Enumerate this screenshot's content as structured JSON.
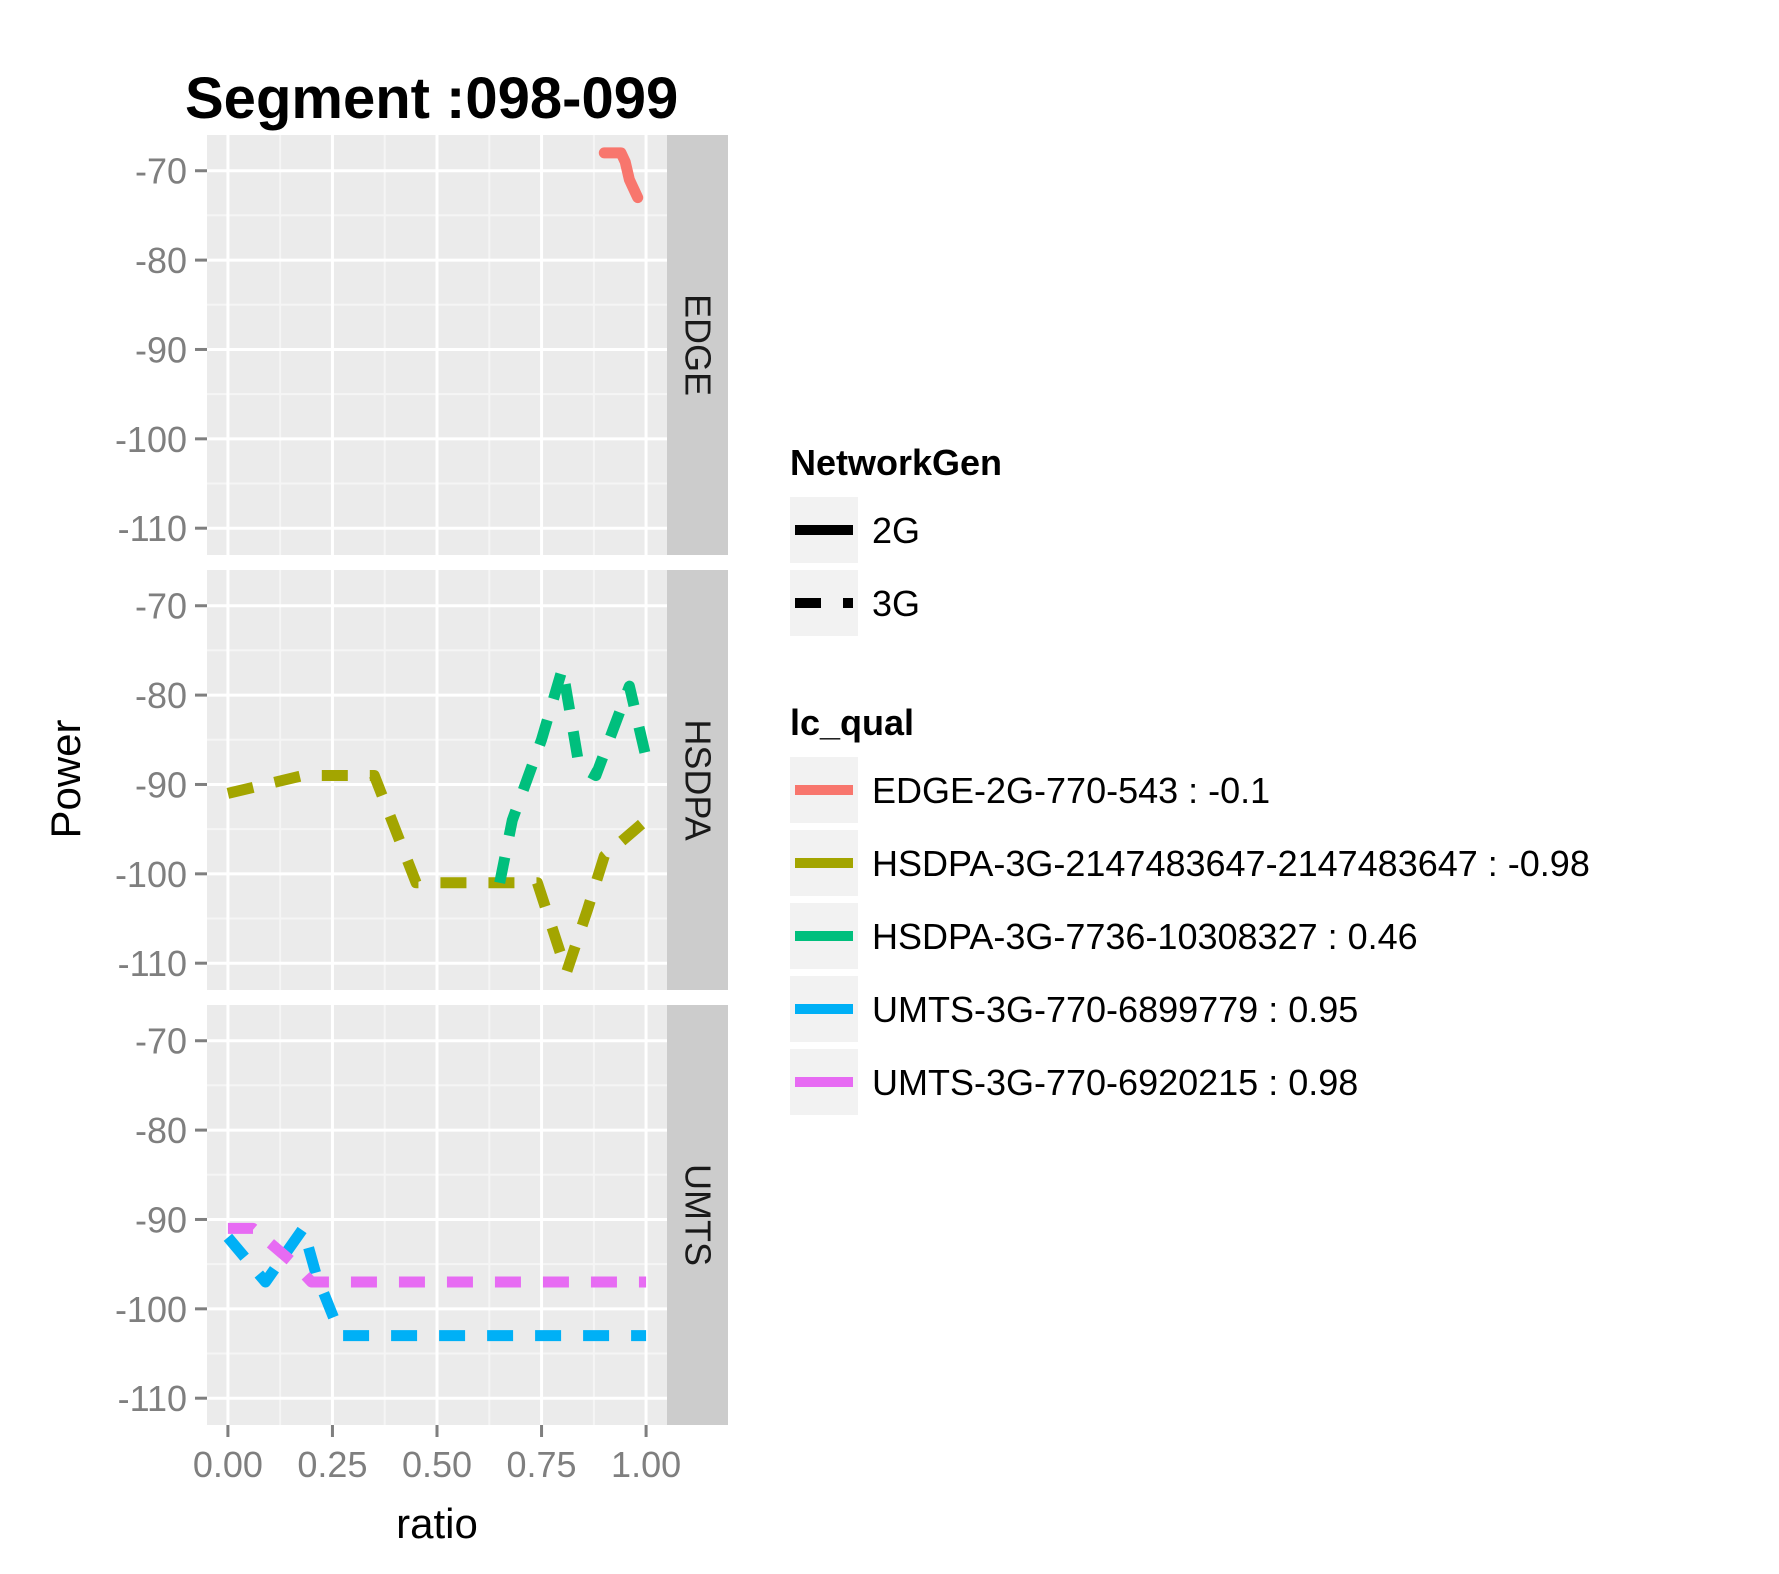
{
  "chart_data": {
    "type": "line",
    "title": "Segment :098-099",
    "xlabel": "ratio",
    "ylabel": "Power",
    "xlim": [
      -0.05,
      1.05
    ],
    "ylim": [
      -113,
      -66
    ],
    "x_ticks": [
      0,
      0.25,
      0.5,
      0.75,
      1
    ],
    "x_tick_labels": [
      "0.00",
      "0.25",
      "0.50",
      "0.75",
      "1.00"
    ],
    "y_ticks": [
      -70,
      -80,
      -90,
      -100,
      -110
    ],
    "y_tick_labels": [
      "-70",
      "-80",
      "-90",
      "-100",
      "-110"
    ],
    "grid": true,
    "facets": [
      {
        "label": "EDGE",
        "series": [
          {
            "name": "EDGE-2G-770-543 : -0.1",
            "color": "#F8766D",
            "linetype": "solid",
            "x": [
              0.9,
              0.94,
              0.95,
              0.96,
              0.97,
              0.98
            ],
            "y": [
              -68,
              -68,
              -69,
              -71,
              -72,
              -73
            ]
          }
        ]
      },
      {
        "label": "HSDPA",
        "series": [
          {
            "name": "HSDPA-3G-2147483647-2147483647 : -0.98",
            "color": "#A3A500",
            "linetype": "dashed",
            "x": [
              0.0,
              0.18,
              0.25,
              0.35,
              0.45,
              0.55,
              0.65,
              0.74,
              0.81,
              0.86,
              0.9,
              1.0
            ],
            "y": [
              -91,
              -89,
              -89,
              -89,
              -101,
              -101,
              -101,
              -101,
              -111,
              -104,
              -98,
              -94
            ]
          },
          {
            "name": "HSDPA-3G-7736-10308327 : 0.46",
            "color": "#00BF7D",
            "linetype": "dashed",
            "x": [
              0.65,
              0.68,
              0.75,
              0.8,
              0.84,
              0.88,
              0.92,
              0.96,
              1.0
            ],
            "y": [
              -101,
              -94,
              -85,
              -77,
              -88,
              -89,
              -84,
              -79,
              -87
            ]
          }
        ]
      },
      {
        "label": "UMTS",
        "series": [
          {
            "name": "UMTS-3G-770-6899779 : 0.95",
            "color": "#00B0F6",
            "linetype": "dashed",
            "x": [
              0.0,
              0.09,
              0.18,
              0.21,
              0.27,
              0.4,
              1.0
            ],
            "y": [
              -92,
              -97,
              -91,
              -96,
              -103,
              -103,
              -103
            ]
          },
          {
            "name": "UMTS-3G-770-6920215 : 0.98",
            "color": "#E76BF3",
            "linetype": "dashed",
            "x": [
              0.0,
              0.06,
              0.16,
              0.2,
              1.0
            ],
            "y": [
              -91,
              -91,
              -95,
              -97,
              -97
            ]
          }
        ]
      }
    ],
    "legends": [
      {
        "title": "NetworkGen",
        "entries": [
          {
            "label": "2G",
            "linetype": "solid",
            "color": "#000000"
          },
          {
            "label": "3G",
            "linetype": "dashed",
            "color": "#000000"
          }
        ]
      },
      {
        "title": "lc_qual",
        "entries": [
          {
            "label": "EDGE-2G-770-543 : -0.1",
            "color": "#F8766D"
          },
          {
            "label": "HSDPA-3G-2147483647-2147483647 : -0.98",
            "color": "#A3A500"
          },
          {
            "label": "HSDPA-3G-7736-10308327 : 0.46",
            "color": "#00BF7D"
          },
          {
            "label": "UMTS-3G-770-6899779 : 0.95",
            "color": "#00B0F6"
          },
          {
            "label": "UMTS-3G-770-6920215 : 0.98",
            "color": "#E76BF3"
          }
        ]
      }
    ],
    "legend_position": "right"
  },
  "colors": {
    "panel_background": "#EBEBEB",
    "strip_background": "#CCCCCC",
    "grid_major": "#FFFFFF",
    "grid_minor": "#F5F5F5",
    "tick_label": "#7F7F7F",
    "legend_key_background": "#F2F2F2"
  }
}
